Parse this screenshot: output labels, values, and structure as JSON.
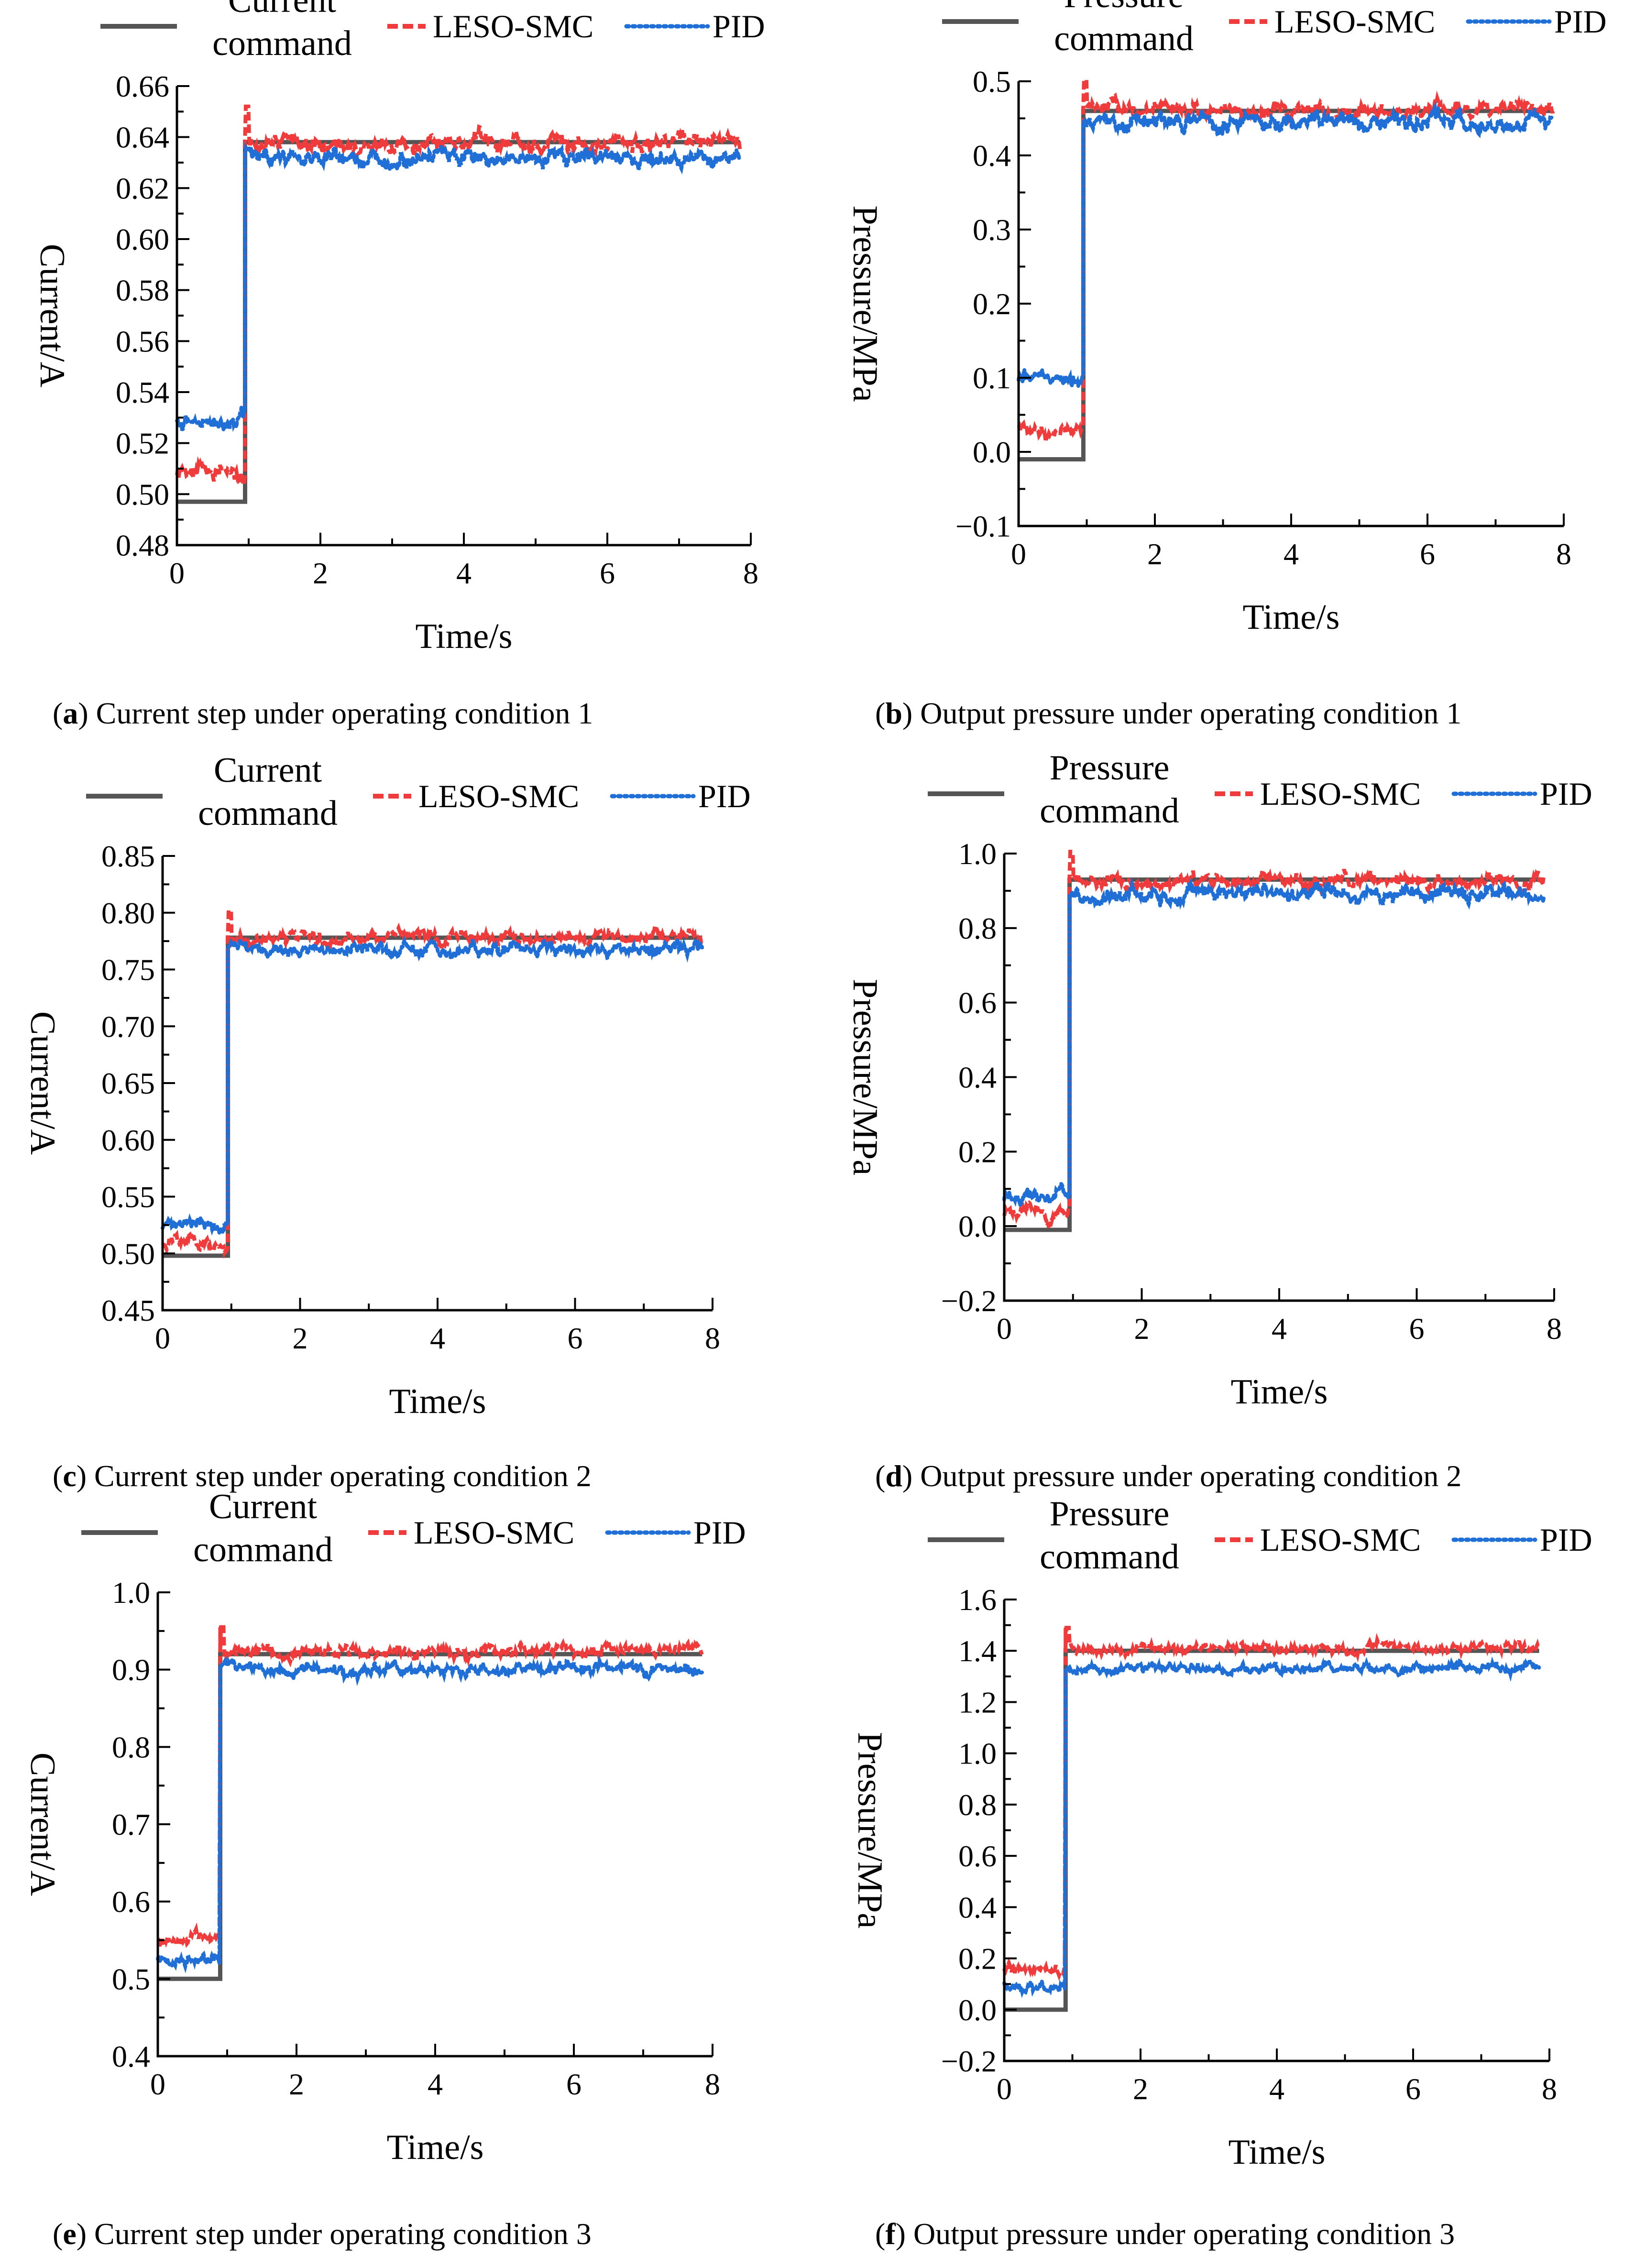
{
  "chart_data": [
    {
      "id": "a",
      "type": "line",
      "caption_letter": "a",
      "caption_text": "Current step under operating condition 1",
      "xlabel": "Time/s",
      "ylabel": "Current/A",
      "xlim": [
        0,
        8
      ],
      "ylim": [
        0.48,
        0.66
      ],
      "xticks": [
        0,
        2,
        4,
        6,
        8
      ],
      "xtick_labels": [
        "0",
        "2",
        "4",
        "6",
        "8"
      ],
      "yticks": [
        0.48,
        0.5,
        0.52,
        0.54,
        0.56,
        0.58,
        0.6,
        0.62,
        0.64,
        0.66
      ],
      "ytick_labels": [
        "0.48",
        "0.50",
        "0.52",
        "0.54",
        "0.56",
        "0.58",
        "0.60",
        "0.62",
        "0.64",
        "0.66"
      ],
      "step_time": 0.95,
      "legend": {
        "command": [
          "Current",
          "command"
        ],
        "leso": "LESO-SMC",
        "pid": "PID"
      },
      "series": [
        {
          "name": "Current command",
          "pre": 0.497,
          "post": 0.638,
          "noise": 0.0,
          "color": "#555555"
        },
        {
          "name": "LESO-SMC",
          "pre": 0.509,
          "post": 0.638,
          "noise": 0.0035,
          "color": "#ef3b3b"
        },
        {
          "name": "PID",
          "pre": 0.529,
          "post": 0.632,
          "noise": 0.0035,
          "color": "#1f6fd6"
        }
      ]
    },
    {
      "id": "b",
      "type": "line",
      "caption_letter": "b",
      "caption_text": "Output pressure under operating condition 1",
      "xlabel": "Time/s",
      "ylabel": "Pressure/MPa",
      "xlim": [
        0,
        8
      ],
      "ylim": [
        -0.1,
        0.5
      ],
      "xticks": [
        0,
        2,
        4,
        6,
        8
      ],
      "xtick_labels": [
        "0",
        "2",
        "4",
        "6",
        "8"
      ],
      "yticks": [
        -0.1,
        0.0,
        0.1,
        0.2,
        0.3,
        0.4,
        0.5
      ],
      "ytick_labels": [
        "−0.1",
        "0.0",
        "0.1",
        "0.2",
        "0.3",
        "0.4",
        "0.5"
      ],
      "step_time": 0.95,
      "legend": {
        "command": [
          "Pressure",
          "command"
        ],
        "leso": "LESO-SMC",
        "pid": "PID"
      },
      "series": [
        {
          "name": "Pressure command",
          "pre": -0.01,
          "post": 0.46,
          "noise": 0.0,
          "color": "#555555"
        },
        {
          "name": "LESO-SMC",
          "pre": 0.03,
          "post": 0.462,
          "noise": 0.01,
          "color": "#ef3b3b"
        },
        {
          "name": "PID",
          "pre": 0.1,
          "post": 0.445,
          "noise": 0.012,
          "color": "#1f6fd6"
        }
      ]
    },
    {
      "id": "c",
      "type": "line",
      "caption_letter": "c",
      "caption_text": "Current step under operating condition 2",
      "xlabel": "Time/s",
      "ylabel": "Current/A",
      "xlim": [
        0,
        8
      ],
      "ylim": [
        0.45,
        0.85
      ],
      "xticks": [
        0,
        2,
        4,
        6,
        8
      ],
      "xtick_labels": [
        "0",
        "2",
        "4",
        "6",
        "8"
      ],
      "yticks": [
        0.45,
        0.5,
        0.55,
        0.6,
        0.65,
        0.7,
        0.75,
        0.8,
        0.85
      ],
      "ytick_labels": [
        "0.45",
        "0.50",
        "0.55",
        "0.60",
        "0.65",
        "0.70",
        "0.75",
        "0.80",
        "0.85"
      ],
      "step_time": 0.95,
      "legend": {
        "command": [
          "Current",
          "command"
        ],
        "leso": "LESO-SMC",
        "pid": "PID"
      },
      "series": [
        {
          "name": "Current command",
          "pre": 0.498,
          "post": 0.778,
          "noise": 0.0,
          "color": "#555555"
        },
        {
          "name": "LESO-SMC",
          "pre": 0.508,
          "post": 0.778,
          "noise": 0.006,
          "color": "#ef3b3b"
        },
        {
          "name": "PID",
          "pre": 0.525,
          "post": 0.768,
          "noise": 0.006,
          "color": "#1f6fd6"
        }
      ]
    },
    {
      "id": "d",
      "type": "line",
      "caption_letter": "d",
      "caption_text": "Output pressure under operating condition 2",
      "xlabel": "Time/s",
      "ylabel": "Pressure/MPa",
      "xlim": [
        0,
        8
      ],
      "ylim": [
        -0.2,
        1.0
      ],
      "xticks": [
        0,
        2,
        4,
        6,
        8
      ],
      "xtick_labels": [
        "0",
        "2",
        "4",
        "6",
        "8"
      ],
      "yticks": [
        -0.2,
        0.0,
        0.2,
        0.4,
        0.6,
        0.8,
        1.0
      ],
      "ytick_labels": [
        "−0.2",
        "0.0",
        "0.2",
        "0.4",
        "0.6",
        "0.8",
        "1.0"
      ],
      "step_time": 0.95,
      "legend": {
        "command": [
          "Pressure",
          "command"
        ],
        "leso": "LESO-SMC",
        "pid": "PID"
      },
      "series": [
        {
          "name": "Pressure command",
          "pre": -0.01,
          "post": 0.93,
          "noise": 0.0,
          "color": "#555555"
        },
        {
          "name": "LESO-SMC",
          "pre": 0.03,
          "post": 0.925,
          "noise": 0.02,
          "color": "#ef3b3b"
        },
        {
          "name": "PID",
          "pre": 0.085,
          "post": 0.89,
          "noise": 0.022,
          "color": "#1f6fd6"
        }
      ]
    },
    {
      "id": "e",
      "type": "line",
      "caption_letter": "e",
      "caption_text": "Current step under operating condition 3",
      "xlabel": "Time/s",
      "ylabel": "Current/A",
      "xlim": [
        0,
        8
      ],
      "ylim": [
        0.4,
        1.0
      ],
      "xticks": [
        0,
        2,
        4,
        6,
        8
      ],
      "xtick_labels": [
        "0",
        "2",
        "4",
        "6",
        "8"
      ],
      "yticks": [
        0.4,
        0.5,
        0.6,
        0.7,
        0.8,
        0.9,
        1.0
      ],
      "ytick_labels": [
        "0.4",
        "0.5",
        "0.6",
        "0.7",
        "0.8",
        "0.9",
        "1.0"
      ],
      "step_time": 0.9,
      "legend": {
        "command": [
          "Current",
          "command"
        ],
        "leso": "LESO-SMC",
        "pid": "PID"
      },
      "series": [
        {
          "name": "Current command",
          "pre": 0.5,
          "post": 0.92,
          "noise": 0.0,
          "color": "#555555"
        },
        {
          "name": "LESO-SMC",
          "pre": 0.55,
          "post": 0.923,
          "noise": 0.008,
          "color": "#ef3b3b"
        },
        {
          "name": "PID",
          "pre": 0.525,
          "post": 0.9,
          "noise": 0.008,
          "color": "#1f6fd6"
        }
      ]
    },
    {
      "id": "f",
      "type": "line",
      "caption_letter": "f",
      "caption_text": "Output pressure under operating condition 3",
      "xlabel": "Time/s",
      "ylabel": "Pressure/MPa",
      "xlim": [
        0,
        8
      ],
      "ylim": [
        -0.2,
        1.6
      ],
      "xticks": [
        0,
        2,
        4,
        6,
        8
      ],
      "xtick_labels": [
        "0",
        "2",
        "4",
        "6",
        "8"
      ],
      "yticks": [
        -0.2,
        0.0,
        0.2,
        0.4,
        0.6,
        0.8,
        1.0,
        1.2,
        1.4,
        1.6
      ],
      "ytick_labels": [
        "−0.2",
        "0.0",
        "0.2",
        "0.4",
        "0.6",
        "0.8",
        "1.0",
        "1.2",
        "1.4",
        "1.6"
      ],
      "step_time": 0.9,
      "legend": {
        "command": [
          "Pressure",
          "command"
        ],
        "leso": "LESO-SMC",
        "pid": "PID"
      },
      "series": [
        {
          "name": "Pressure command",
          "pre": 0.0,
          "post": 1.4,
          "noise": 0.0,
          "color": "#555555"
        },
        {
          "name": "LESO-SMC",
          "pre": 0.16,
          "post": 1.41,
          "noise": 0.02,
          "color": "#ef3b3b"
        },
        {
          "name": "PID",
          "pre": 0.09,
          "post": 1.33,
          "noise": 0.02,
          "color": "#1f6fd6"
        }
      ]
    }
  ]
}
